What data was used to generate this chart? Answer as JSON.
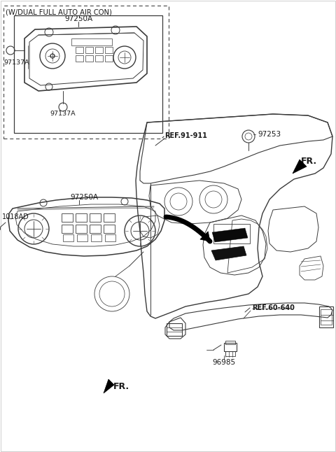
{
  "bg_color": "#ffffff",
  "line_color": "#3a3a3a",
  "text_color": "#1a1a1a",
  "figsize": [
    4.8,
    6.46
  ],
  "dpi": 100,
  "labels": {
    "top_box_header": "(W/DUAL FULL AUTO AIR CON)",
    "top_97250A": "97250A",
    "top_97137A_1": "97137A",
    "top_97137A_2": "97137A",
    "ref_91_911": "REF.91-911",
    "part_97253": "97253",
    "fr_top": "FR.",
    "part_1018AD": "1018AD",
    "part_97250A_main": "97250A",
    "ref_60_640": "REF.60-640",
    "part_96985": "96985",
    "fr_bottom": "FR."
  }
}
